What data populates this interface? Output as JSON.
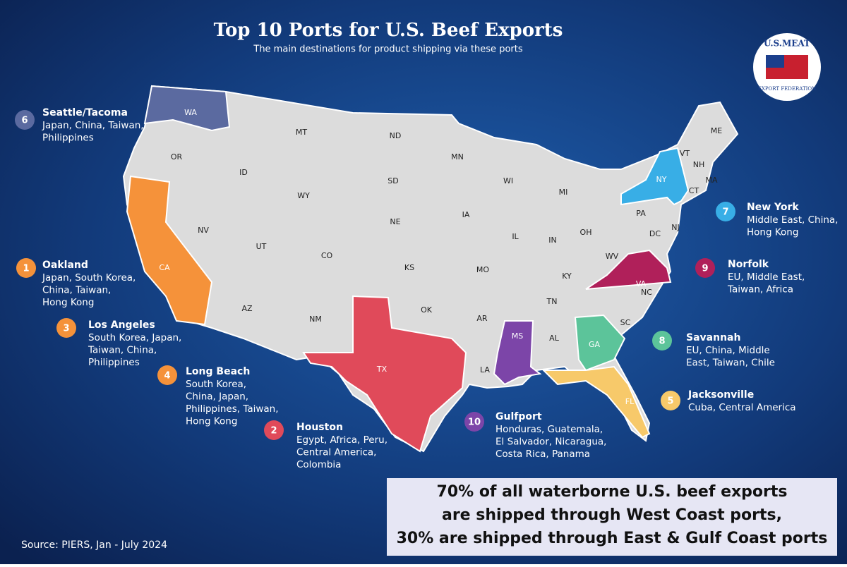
{
  "header": {
    "title": "Top 10 Ports for U.S. Beef Exports",
    "subtitle": "The main destinations for product shipping via these ports"
  },
  "logo": {
    "top": "U.S.MEAT",
    "bottom": "EXPORT FEDERATION"
  },
  "states": [
    "WA",
    "OR",
    "CA",
    "NV",
    "ID",
    "MT",
    "WY",
    "UT",
    "AZ",
    "CO",
    "NM",
    "ND",
    "SD",
    "NE",
    "KS",
    "OK",
    "TX",
    "MN",
    "IA",
    "MO",
    "AR",
    "LA",
    "WI",
    "IL",
    "MI",
    "IN",
    "OH",
    "KY",
    "TN",
    "MS",
    "AL",
    "GA",
    "FL",
    "SC",
    "NC",
    "VA",
    "WV",
    "PA",
    "NY",
    "VT",
    "NH",
    "ME",
    "MA",
    "CT",
    "NJ",
    "DC"
  ],
  "ports": [
    {
      "rank": 6,
      "name": "Seattle/Tacoma",
      "color": "#5b6aa0",
      "lines": [
        "Japan, China, Taiwan,",
        "Philippines"
      ]
    },
    {
      "rank": 1,
      "name": "Oakland",
      "color": "#f5923a",
      "lines": [
        "Japan, South Korea,",
        "China, Taiwan,",
        "Hong Kong"
      ]
    },
    {
      "rank": 3,
      "name": "Los Angeles",
      "color": "#f5923a",
      "lines": [
        "South Korea, Japan,",
        "Taiwan, China,",
        "Philippines"
      ]
    },
    {
      "rank": 4,
      "name": "Long Beach",
      "color": "#f5923a",
      "lines": [
        "South Korea,",
        "China, Japan,",
        "Philippines, Taiwan,",
        "Hong Kong"
      ]
    },
    {
      "rank": 2,
      "name": "Houston",
      "color": "#e04a5a",
      "lines": [
        "Egypt, Africa, Peru,",
        "Central America,",
        "Colombia"
      ]
    },
    {
      "rank": 10,
      "name": "Gulfport",
      "color": "#7c45a8",
      "lines": [
        "Honduras, Guatemala,",
        "El Salvador, Nicaragua,",
        "Costa Rica, Panama"
      ]
    },
    {
      "rank": 7,
      "name": "New York",
      "color": "#38aee6",
      "lines": [
        "Middle East, China,",
        "Hong Kong"
      ]
    },
    {
      "rank": 9,
      "name": "Norfolk",
      "color": "#b0205a",
      "lines": [
        "EU, Middle East,",
        "Taiwan, Africa"
      ]
    },
    {
      "rank": 8,
      "name": "Savannah",
      "color": "#5cc49a",
      "lines": [
        "EU, China, Middle",
        "East, Taiwan, Chile"
      ]
    },
    {
      "rank": 5,
      "name": "Jacksonville",
      "color": "#f7c96a",
      "lines": [
        "Cuba, Central America"
      ]
    }
  ],
  "callout": [
    "70% of all waterborne U.S. beef exports",
    "are shipped through West Coast ports,",
    "30% are shipped through East & Gulf Coast ports"
  ],
  "source": "Source: PIERS, Jan - July 2024"
}
